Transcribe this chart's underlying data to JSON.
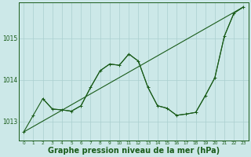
{
  "bg_color": "#cce8e8",
  "grid_color": "#aacfcf",
  "line_color": "#1a5c1a",
  "xlabel": "Graphe pression niveau de la mer (hPa)",
  "xlabel_fontsize": 7,
  "ylabel_ticks": [
    1013,
    1014,
    1015
  ],
  "xlim": [
    -0.5,
    23.5
  ],
  "ylim": [
    1012.55,
    1015.85
  ],
  "straight_line": {
    "x": [
      0,
      23
    ],
    "y": [
      1012.75,
      1015.75
    ]
  },
  "series_zigzag": {
    "x": [
      0,
      1,
      2,
      3,
      4,
      5,
      6,
      7,
      8,
      9,
      10,
      11,
      12,
      13,
      14,
      15,
      16,
      17,
      18,
      19,
      20,
      21,
      22,
      23
    ],
    "y": [
      1012.75,
      1013.15,
      1013.55,
      1013.3,
      1013.28,
      1013.25,
      1013.38,
      1013.82,
      1014.22,
      1014.38,
      1014.35,
      1014.62,
      1014.45,
      1013.82,
      1013.38,
      1013.32,
      1013.15,
      1013.18,
      1013.22,
      1013.62,
      1014.05,
      1015.05,
      1015.6,
      1015.75
    ]
  },
  "series_peak": {
    "x": [
      2,
      3,
      4,
      5,
      6,
      7,
      8,
      9,
      10,
      11,
      12,
      13,
      14,
      15,
      16,
      17,
      18,
      19,
      20,
      21,
      22,
      23
    ],
    "y": [
      1013.55,
      1013.3,
      1013.28,
      1013.25,
      1013.38,
      1013.82,
      1014.22,
      1014.38,
      1014.35,
      1014.62,
      1014.45,
      1013.82,
      1013.38,
      1013.32,
      1013.15,
      1013.18,
      1013.22,
      1013.62,
      1014.05,
      1015.05,
      1015.6,
      1015.75
    ]
  }
}
